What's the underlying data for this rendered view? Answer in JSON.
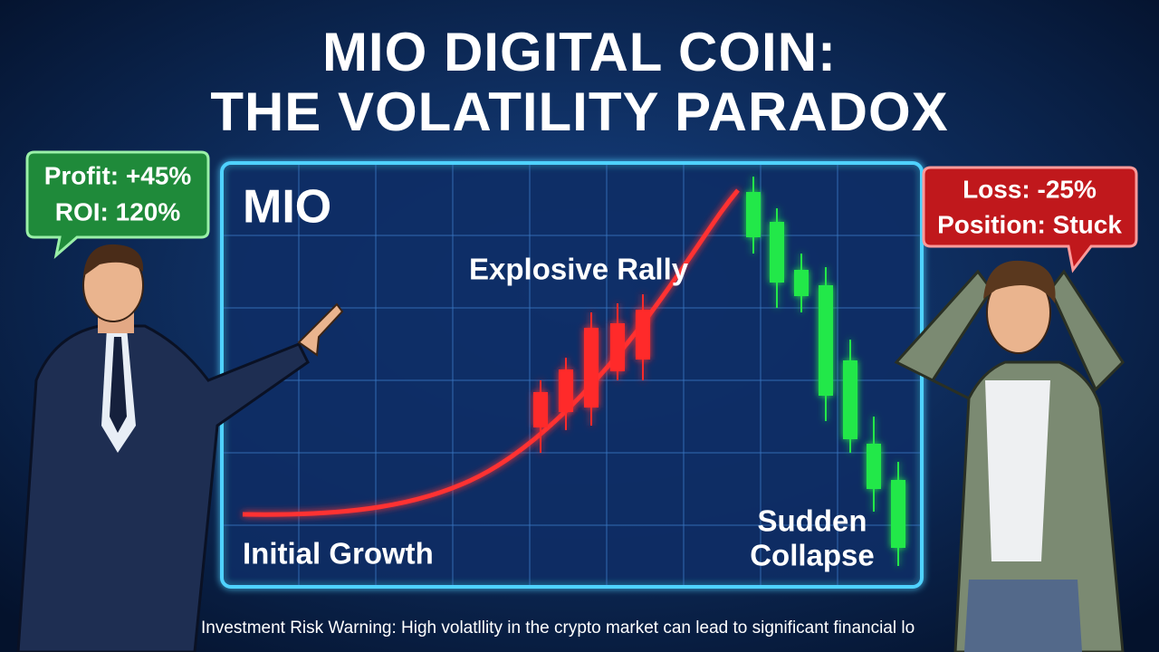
{
  "title": {
    "lines": [
      "MIO DIGITAL COIN:",
      "THE VOLATILITY PARADOX"
    ]
  },
  "chart": {
    "label": "MIO",
    "rally": "Explosive Rally",
    "start": "Initial Growth",
    "collapse": [
      "Sudden",
      "Collapse"
    ]
  },
  "left_bubble": {
    "lines": [
      "Profit: +45%",
      "ROI: 120%"
    ]
  },
  "right_bubble": {
    "lines": [
      "Loss: -25%",
      "Position: Stuck"
    ]
  },
  "footer": "Investment Risk Warning: High volatllity in the crypto market can lead to significant financial lo"
}
